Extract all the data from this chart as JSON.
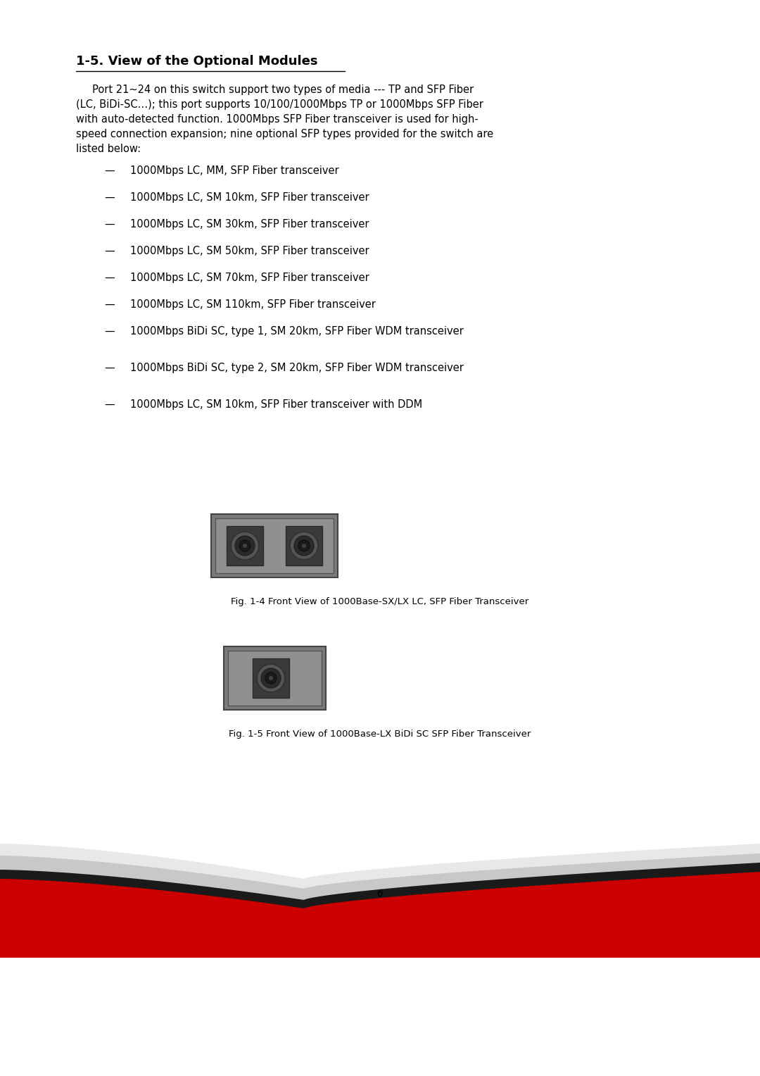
{
  "title": "1-5. View of the Optional Modules",
  "paragraph_lines": [
    "     Port 21~24 on this switch support two types of media --- TP and SFP Fiber",
    "(LC, BiDi-SC…); this port supports 10/100/1000Mbps TP or 1000Mbps SFP Fiber",
    "with auto-detected function. 1000Mbps SFP Fiber transceiver is used for high-",
    "speed connection expansion; nine optional SFP types provided for the switch are",
    "listed below:"
  ],
  "bullet_items": [
    "1000Mbps LC, MM, SFP Fiber transceiver",
    "1000Mbps LC, SM 10km, SFP Fiber transceiver",
    "1000Mbps LC, SM 30km, SFP Fiber transceiver",
    "1000Mbps LC, SM 50km, SFP Fiber transceiver",
    "1000Mbps LC, SM 70km, SFP Fiber transceiver",
    "1000Mbps LC, SM 110km, SFP Fiber transceiver",
    "1000Mbps BiDi SC, type 1, SM 20km, SFP Fiber WDM transceiver",
    "1000Mbps BiDi SC, type 2, SM 20km, SFP Fiber WDM transceiver",
    "1000Mbps LC, SM 10km, SFP Fiber transceiver with DDM"
  ],
  "bullet_spacings": [
    38,
    38,
    38,
    38,
    38,
    38,
    52,
    52,
    52
  ],
  "fig1_caption": "Fig. 1-4 Front View of 1000Base-SX/LX LC, SFP Fiber Transceiver",
  "fig2_caption": "Fig. 1-5 Front View of 1000Base-LX BiDi SC SFP Fiber Transceiver",
  "page_number": "6",
  "bg_color": "#ffffff",
  "text_color": "#000000",
  "title_fontsize": 13,
  "body_fontsize": 10.5,
  "bullet_fontsize": 10.5,
  "footer_color_light1": "#e8e8e8",
  "footer_color_light2": "#c8c8c8",
  "footer_color_dark": "#1a1a1a",
  "footer_color_red": "#cc0000"
}
